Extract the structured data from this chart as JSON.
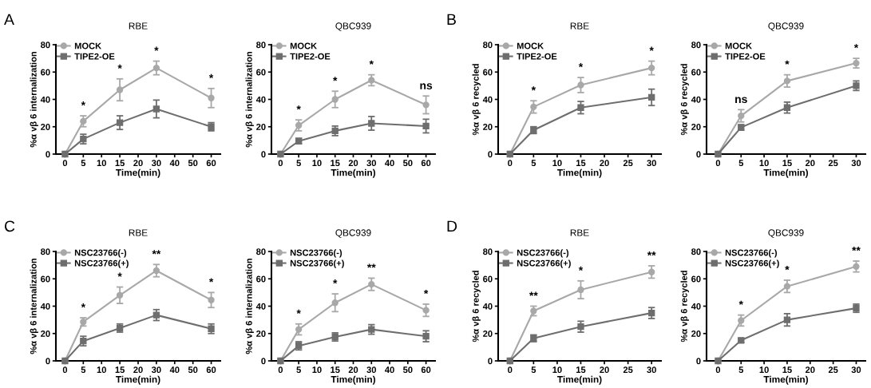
{
  "chart_data": [
    {
      "type": "line",
      "title": "RBE",
      "xlabel": "Time(min)",
      "ylabel": "%α vβ 6 internalization",
      "categories": [
        "0",
        "5",
        "10",
        "15",
        "20",
        "30",
        "40",
        "50",
        "60"
      ],
      "ylim": [
        0,
        80
      ],
      "yticks": [
        0,
        20,
        40,
        60,
        80
      ],
      "grid": false,
      "legend": "top left",
      "series": [
        {
          "name": "MOCK",
          "color": "#a8a8a8",
          "marker": "circle",
          "x": [
            "0",
            "5",
            "15",
            "30",
            "60"
          ],
          "values": [
            0,
            24,
            47,
            63,
            41
          ],
          "errors": [
            null,
            4,
            8,
            5,
            7
          ]
        },
        {
          "name": "TIPE2-OE",
          "color": "#6e6e6e",
          "marker": "square",
          "x": [
            "0",
            "5",
            "15",
            "30",
            "60"
          ],
          "values": [
            0,
            11,
            23,
            33,
            20
          ],
          "errors": [
            null,
            3.5,
            5,
            6.5,
            3
          ]
        }
      ],
      "annotations": [
        "A",
        {
          "text": "*",
          "x": "5",
          "y": 28
        },
        {
          "text": "*",
          "x": "15",
          "y": 55
        },
        {
          "text": "*",
          "x": "30",
          "y": 68
        },
        {
          "text": "*",
          "x": "60",
          "y": 48
        }
      ]
    },
    {
      "type": "line",
      "title": "QBC939",
      "xlabel": "Time(min)",
      "ylabel": "%α vβ 6 internalization",
      "categories": [
        "0",
        "5",
        "10",
        "15",
        "20",
        "30",
        "40",
        "50",
        "60"
      ],
      "ylim": [
        0,
        80
      ],
      "yticks": [
        0,
        20,
        40,
        60,
        80
      ],
      "grid": false,
      "legend": "top left",
      "series": [
        {
          "name": "MOCK",
          "color": "#a8a8a8",
          "marker": "circle",
          "x": [
            "0",
            "5",
            "15",
            "30",
            "60"
          ],
          "values": [
            0,
            21,
            40,
            54,
            36
          ],
          "errors": [
            null,
            4,
            6,
            4,
            6.5
          ]
        },
        {
          "name": "TIPE2-OE",
          "color": "#6e6e6e",
          "marker": "square",
          "x": [
            "0",
            "5",
            "15",
            "30",
            "60"
          ],
          "values": [
            0,
            9.5,
            17,
            22.5,
            20.5
          ],
          "errors": [
            null,
            2,
            3.5,
            5,
            5
          ]
        }
      ],
      "annotations": [
        {
          "text": "*",
          "x": "5",
          "y": 25
        },
        {
          "text": "*",
          "x": "15",
          "y": 46
        },
        {
          "text": "*",
          "x": "30",
          "y": 58
        },
        {
          "text": "ns",
          "x": "60",
          "y": 42.5
        }
      ]
    },
    {
      "type": "line",
      "title": "RBE",
      "xlabel": "Time(min)",
      "ylabel": "%α vβ 6 recycled",
      "x": [
        0,
        5,
        15,
        30
      ],
      "xlim": [
        -2.5,
        32
      ],
      "xticks": [
        0,
        5,
        10,
        15,
        20,
        25,
        30
      ],
      "ylim": [
        0,
        80
      ],
      "yticks": [
        0,
        20,
        40,
        60,
        80
      ],
      "grid": false,
      "legend": "top left",
      "series": [
        {
          "name": "MOCK",
          "color": "#a8a8a8",
          "marker": "circle",
          "values": [
            0,
            34.5,
            50.5,
            63
          ],
          "errors": [
            null,
            4.5,
            5.5,
            5
          ]
        },
        {
          "name": "TIPE2-OE",
          "color": "#6e6e6e",
          "marker": "square",
          "values": [
            0,
            17.5,
            34,
            41.5
          ],
          "errors": [
            null,
            2.5,
            4.5,
            6
          ]
        }
      ],
      "annotations": [
        "B",
        {
          "text": "*",
          "x": 5,
          "y": 39
        },
        {
          "text": "*",
          "x": 15,
          "y": 56
        },
        {
          "text": "*",
          "x": 30,
          "y": 68
        }
      ]
    },
    {
      "type": "line",
      "title": "QBC939",
      "xlabel": "Time(min)",
      "ylabel": "%α vβ 6 recycled",
      "x": [
        0,
        5,
        15,
        30
      ],
      "xlim": [
        -2.5,
        32
      ],
      "xticks": [
        0,
        5,
        10,
        15,
        20,
        25,
        30
      ],
      "ylim": [
        0,
        80
      ],
      "yticks": [
        0,
        20,
        40,
        60,
        80
      ],
      "grid": false,
      "legend": "top left",
      "series": [
        {
          "name": "MOCK",
          "color": "#a8a8a8",
          "marker": "circle",
          "values": [
            0,
            28,
            53.5,
            66.5
          ],
          "errors": [
            null,
            4.5,
            4.5,
            3.5
          ]
        },
        {
          "name": "TIPE2-OE",
          "color": "#6e6e6e",
          "marker": "square",
          "values": [
            0,
            19.5,
            34,
            50
          ],
          "errors": [
            null,
            2,
            4,
            3.5
          ]
        }
      ],
      "annotations": [
        {
          "text": "ns",
          "x": 5,
          "y": 32.5
        },
        {
          "text": "*",
          "x": 15,
          "y": 58
        },
        {
          "text": "*",
          "x": 30,
          "y": 70
        }
      ]
    },
    {
      "type": "line",
      "title": "RBE",
      "xlabel": "Time(min)",
      "ylabel": "%α vβ 6 internalization",
      "categories": [
        "0",
        "5",
        "10",
        "15",
        "20",
        "30",
        "40",
        "50",
        "60"
      ],
      "ylim": [
        0,
        80
      ],
      "yticks": [
        0,
        20,
        40,
        60,
        80
      ],
      "grid": false,
      "legend": "top left",
      "series": [
        {
          "name": "NSC23766(-)",
          "color": "#a8a8a8",
          "marker": "circle",
          "x": [
            "0",
            "5",
            "15",
            "30",
            "60"
          ],
          "values": [
            0,
            28.5,
            48,
            66,
            44.5
          ],
          "errors": [
            null,
            3,
            6,
            4.5,
            5.5
          ]
        },
        {
          "name": "NSC23766(+)",
          "color": "#6e6e6e",
          "marker": "square",
          "x": [
            "0",
            "5",
            "15",
            "30",
            "60"
          ],
          "values": [
            0,
            14.5,
            24,
            33.5,
            23.5
          ],
          "errors": [
            null,
            3.5,
            3,
            4,
            3.5
          ]
        }
      ],
      "annotations": [
        "C",
        {
          "text": "*",
          "x": "5",
          "y": 31.5
        },
        {
          "text": "*",
          "x": "15",
          "y": 54
        },
        {
          "text": "**",
          "x": "30",
          "y": 70.5
        },
        {
          "text": "*",
          "x": "60",
          "y": 50
        }
      ]
    },
    {
      "type": "line",
      "title": "QBC939",
      "xlabel": "Time(min)",
      "ylabel": "%α vβ 6 internalization",
      "categories": [
        "0",
        "5",
        "10",
        "15",
        "20",
        "30",
        "40",
        "50",
        "60"
      ],
      "ylim": [
        0,
        80
      ],
      "yticks": [
        0,
        20,
        40,
        60,
        80
      ],
      "grid": false,
      "legend": "top left",
      "series": [
        {
          "name": "NSC23766(-)",
          "color": "#a8a8a8",
          "marker": "circle",
          "x": [
            "0",
            "5",
            "15",
            "30",
            "60"
          ],
          "values": [
            0,
            23,
            42.5,
            56,
            37
          ],
          "errors": [
            null,
            4,
            6.5,
            4.5,
            4.5
          ]
        },
        {
          "name": "NSC23766(+)",
          "color": "#6e6e6e",
          "marker": "square",
          "x": [
            "0",
            "5",
            "15",
            "30",
            "60"
          ],
          "values": [
            0,
            11,
            17.5,
            23,
            18
          ],
          "errors": [
            null,
            3,
            3,
            3.5,
            4
          ]
        }
      ],
      "annotations": [
        {
          "text": "*",
          "x": "5",
          "y": 27
        },
        {
          "text": "*",
          "x": "15",
          "y": 49
        },
        {
          "text": "**",
          "x": "30",
          "y": 60.5
        },
        {
          "text": "*",
          "x": "60",
          "y": 41.5
        }
      ]
    },
    {
      "type": "line",
      "title": "RBE",
      "xlabel": "Time(min)",
      "ylabel": "%α vβ 6 recycled",
      "x": [
        0,
        5,
        15,
        30
      ],
      "xlim": [
        -2.5,
        32
      ],
      "xticks": [
        0,
        5,
        10,
        15,
        20,
        25,
        30
      ],
      "ylim": [
        0,
        80
      ],
      "yticks": [
        0,
        20,
        40,
        60,
        80
      ],
      "grid": false,
      "legend": "top left",
      "series": [
        {
          "name": "NSC23766(-)",
          "color": "#a8a8a8",
          "marker": "circle",
          "values": [
            0,
            36.5,
            52,
            65
          ],
          "errors": [
            null,
            3.5,
            6.5,
            4.5
          ]
        },
        {
          "name": "NSC23766(+)",
          "color": "#6e6e6e",
          "marker": "square",
          "values": [
            0,
            16.5,
            25,
            35
          ],
          "errors": [
            null,
            2.5,
            4,
            4
          ]
        }
      ],
      "annotations": [
        "D",
        {
          "text": "**",
          "x": 5,
          "y": 40
        },
        {
          "text": "*",
          "x": 15,
          "y": 58.5
        },
        {
          "text": "**",
          "x": 30,
          "y": 69.5
        }
      ]
    },
    {
      "type": "line",
      "title": "QBC939",
      "xlabel": "Time(min)",
      "ylabel": "%α vβ 6 recycled",
      "x": [
        0,
        5,
        15,
        30
      ],
      "xlim": [
        -2.5,
        32
      ],
      "xticks": [
        0,
        5,
        10,
        15,
        20,
        25,
        30
      ],
      "ylim": [
        0,
        80
      ],
      "yticks": [
        0,
        20,
        40,
        60,
        80
      ],
      "grid": false,
      "legend": "top left",
      "series": [
        {
          "name": "NSC23766(-)",
          "color": "#a8a8a8",
          "marker": "circle",
          "values": [
            0,
            29.5,
            54.5,
            69
          ],
          "errors": [
            null,
            4,
            4.5,
            4
          ]
        },
        {
          "name": "NSC23766(+)",
          "color": "#6e6e6e",
          "marker": "square",
          "values": [
            0,
            15,
            30,
            38.5
          ],
          "errors": [
            null,
            1.5,
            4.5,
            3
          ]
        }
      ],
      "annotations": [
        {
          "text": "*",
          "x": 5,
          "y": 33.5
        },
        {
          "text": "*",
          "x": 15,
          "y": 59
        },
        {
          "text": "**",
          "x": 30,
          "y": 73
        }
      ]
    }
  ]
}
